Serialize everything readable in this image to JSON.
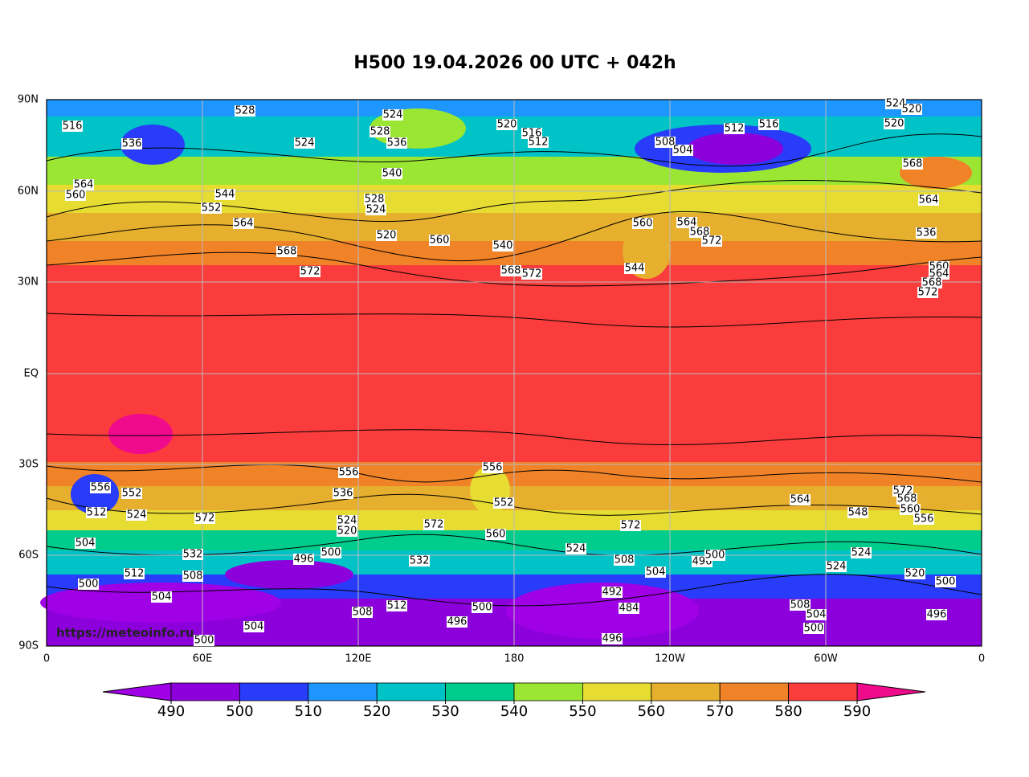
{
  "title": "H500  19.04.2026 00 UTC + 042h",
  "lat_labels": [
    "90N",
    "60N",
    "30N",
    "EQ",
    "30S",
    "60S",
    "90S"
  ],
  "lon_labels": [
    "0",
    "60E",
    "120E",
    "180",
    "120W",
    "60W",
    "0"
  ],
  "colorbar": {
    "levels": [
      490,
      500,
      510,
      520,
      530,
      540,
      550,
      560,
      570,
      580,
      590
    ],
    "colors": [
      "#8c00dc",
      "#283cfa",
      "#1e96ff",
      "#00c3c8",
      "#00cd8c",
      "#9be632",
      "#e6dc32",
      "#e6af2d",
      "#f08228",
      "#fa3c3c"
    ],
    "under_color": "#a000e6",
    "over_color": "#f00a8c"
  },
  "watermark": "https://meteoinfo.ru",
  "contour_labels": [
    528,
    524,
    520,
    516,
    512,
    524,
    540,
    536,
    528,
    516,
    536,
    564,
    560,
    544,
    552,
    564,
    568,
    572,
    528,
    524,
    520,
    560,
    540,
    568,
    572,
    560,
    544,
    564,
    568,
    572,
    508,
    504,
    516,
    512,
    536,
    564,
    560,
    564,
    568,
    572,
    524,
    520,
    520,
    568,
    556,
    512,
    504,
    552,
    524,
    572,
    532,
    508,
    512,
    500,
    504,
    504,
    500,
    496,
    500,
    556,
    536,
    524,
    520,
    508,
    512,
    532,
    496,
    500,
    556,
    552,
    572,
    560,
    524,
    572,
    508,
    504,
    492,
    484,
    496,
    496,
    500,
    564,
    508,
    504,
    500,
    524,
    548,
    524,
    572,
    568,
    560,
    556,
    520,
    500,
    496
  ]
}
